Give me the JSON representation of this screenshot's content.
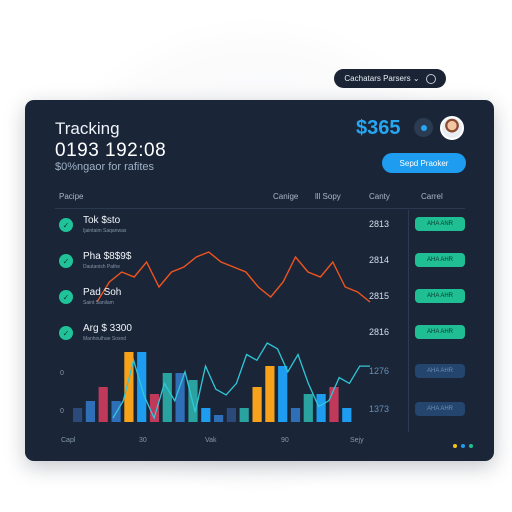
{
  "top_pill": {
    "label": "Cachatars Parsers ⌄"
  },
  "header": {
    "title": "Tracking",
    "clock": "0193 192:08",
    "subtitle": "$0%ngaor for rafites",
    "price": "$365",
    "primary_button": "Sepd Praoker"
  },
  "table": {
    "columns": [
      "Pacipe",
      "Canige",
      "lll Sopy",
      "Canty",
      "Carrel"
    ],
    "rows": [
      {
        "name": "Tok $sto",
        "meta": "Ijaintaim Saqanwas",
        "value": "2813",
        "badge": "AHA ANR",
        "muted": false
      },
      {
        "name": "Pha $8$9$",
        "meta": "Dautanish Pathe",
        "value": "2814",
        "badge": "AHA AHR",
        "muted": false
      },
      {
        "name": "Pad Soh",
        "meta": "Saint Sanilam",
        "value": "2815",
        "badge": "AHA AHR",
        "muted": false
      },
      {
        "name": "Arg $ 3300",
        "meta": "Manhoulhae Sosnd",
        "value": "2816",
        "badge": "AHA AHR",
        "muted": false
      },
      {
        "name": "",
        "meta": "",
        "value": "1276",
        "badge": "AHA AHR",
        "muted": true
      },
      {
        "name": "",
        "meta": "",
        "value": "1373",
        "badge": "AHA AHR",
        "muted": true
      }
    ]
  },
  "chart_data": {
    "type": "bar",
    "y_ticks": [
      "0",
      "0"
    ],
    "x_ticks": [
      "Capl",
      "30",
      "Vak",
      "90",
      "Sejy"
    ],
    "bars": [
      {
        "value": 2,
        "color": "#2b4a7a"
      },
      {
        "value": 3,
        "color": "#2f6fb8"
      },
      {
        "value": 5,
        "color": "#c0395a"
      },
      {
        "value": 3,
        "color": "#2f6fb8"
      },
      {
        "value": 10,
        "color": "#f7a21b"
      },
      {
        "value": 10,
        "color": "#1e9cf0"
      },
      {
        "value": 4,
        "color": "#c0395a"
      },
      {
        "value": 7,
        "color": "#2aa3a0"
      },
      {
        "value": 7,
        "color": "#2f6fb8"
      },
      {
        "value": 6,
        "color": "#2aa3a0"
      },
      {
        "value": 2,
        "color": "#1e9cf0"
      },
      {
        "value": 1,
        "color": "#2f6fb8"
      },
      {
        "value": 2,
        "color": "#2b4a7a"
      },
      {
        "value": 2,
        "color": "#2aa3a0"
      },
      {
        "value": 5,
        "color": "#f7a21b"
      },
      {
        "value": 8,
        "color": "#f7a21b"
      },
      {
        "value": 8,
        "color": "#1e9cf0"
      },
      {
        "value": 2,
        "color": "#2f6fb8"
      },
      {
        "value": 4,
        "color": "#2aa3a0"
      },
      {
        "value": 4,
        "color": "#1e9cf0"
      },
      {
        "value": 5,
        "color": "#c0395a"
      },
      {
        "value": 2,
        "color": "#1e9cf0"
      }
    ],
    "series_red": [
      0,
      4,
      6,
      5,
      8,
      3,
      6,
      7,
      9,
      10,
      8,
      7,
      6,
      3,
      1,
      4,
      9,
      6,
      5,
      8,
      3,
      2,
      0
    ],
    "series_teal": [
      0,
      3,
      10,
      4,
      0,
      6,
      3,
      8,
      1,
      9,
      5,
      4,
      6,
      11,
      10,
      13,
      12,
      8,
      11,
      6,
      2,
      3,
      7,
      6,
      9,
      9
    ]
  },
  "pager_colors": [
    "#f7c21b",
    "#1e9cf0",
    "#1fbf93"
  ]
}
